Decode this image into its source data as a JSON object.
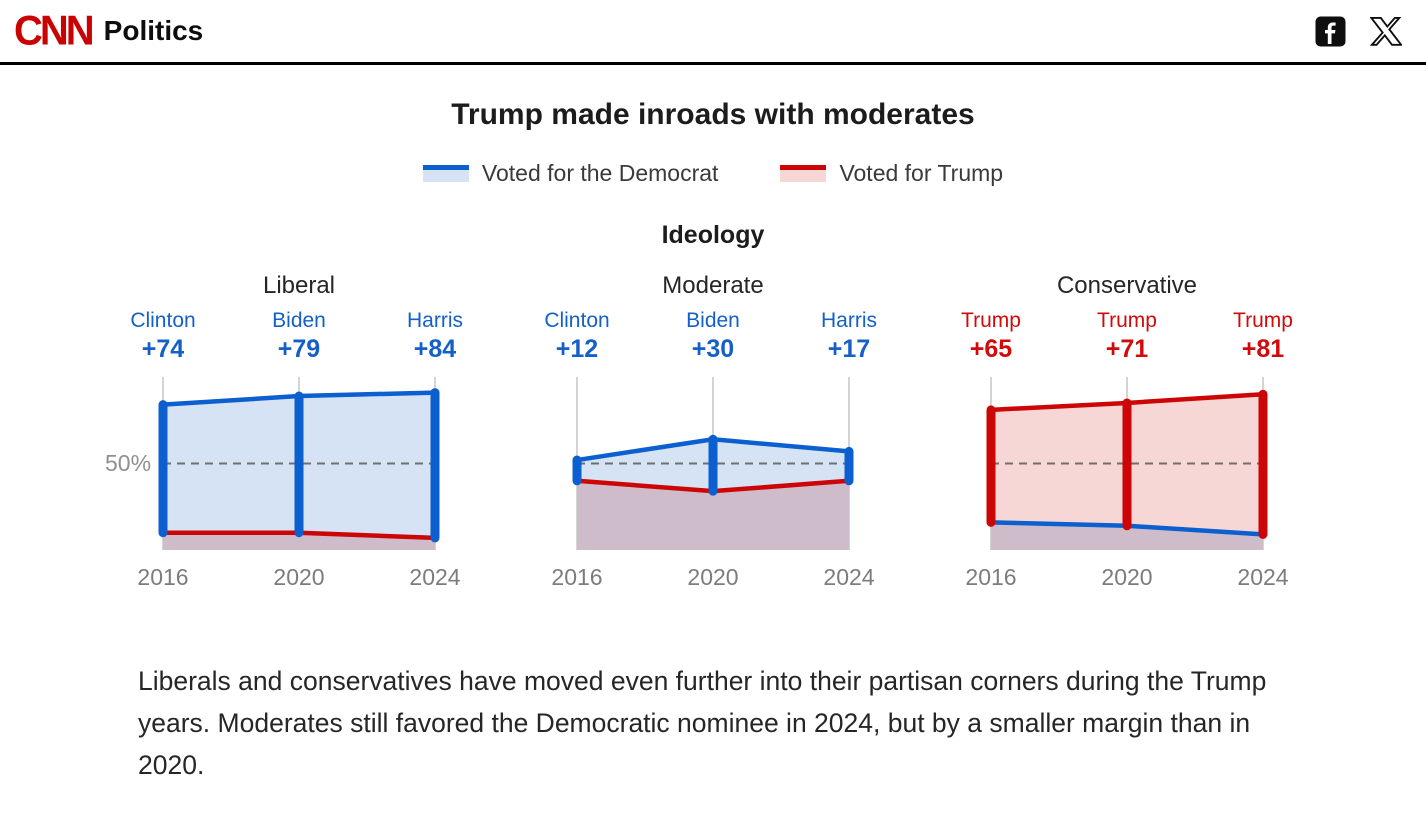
{
  "header": {
    "brand": "CNN",
    "section": "Politics",
    "social": {
      "facebook": "facebook-share",
      "x": "x-share"
    }
  },
  "chart": {
    "title": "Trump made inroads with moderates",
    "group_label": "Ideology",
    "y_ref_label": "50%",
    "legend": [
      {
        "label": "Voted for the Democrat",
        "line_color": "#0b5fce",
        "fill_color": "#d5e3f5"
      },
      {
        "label": "Voted for Trump",
        "line_color": "#cc0606",
        "fill_color": "#f6d7d6"
      }
    ]
  },
  "chart_data": {
    "type": "area",
    "x": [
      2016,
      2020,
      2024
    ],
    "x_tick_labels": [
      "2016",
      "2020",
      "2024"
    ],
    "ylim": [
      0,
      100
    ],
    "reference_line": 50,
    "panels": [
      {
        "title": "Liberal",
        "leader": "democrat",
        "annotations": [
          {
            "name": "Clinton",
            "margin": "+74"
          },
          {
            "name": "Biden",
            "margin": "+79"
          },
          {
            "name": "Harris",
            "margin": "+84"
          }
        ],
        "series": [
          {
            "name": "Democrat",
            "values": [
              84,
              89,
              91
            ]
          },
          {
            "name": "Trump",
            "values": [
              10,
              10,
              7
            ]
          }
        ]
      },
      {
        "title": "Moderate",
        "leader": "democrat",
        "annotations": [
          {
            "name": "Clinton",
            "margin": "+12"
          },
          {
            "name": "Biden",
            "margin": "+30"
          },
          {
            "name": "Harris",
            "margin": "+17"
          }
        ],
        "series": [
          {
            "name": "Democrat",
            "values": [
              52,
              64,
              57
            ]
          },
          {
            "name": "Trump",
            "values": [
              40,
              34,
              40
            ]
          }
        ]
      },
      {
        "title": "Conservative",
        "leader": "trump",
        "annotations": [
          {
            "name": "Trump",
            "margin": "+65"
          },
          {
            "name": "Trump",
            "margin": "+71"
          },
          {
            "name": "Trump",
            "margin": "+81"
          }
        ],
        "series": [
          {
            "name": "Democrat",
            "values": [
              16,
              14,
              9
            ]
          },
          {
            "name": "Trump",
            "values": [
              81,
              85,
              90
            ]
          }
        ]
      }
    ]
  },
  "colors": {
    "dem_line": "#0b5fce",
    "dem_fill": "#d5e3f5",
    "rep_line": "#cc0606",
    "rep_fill": "#f6d7d6",
    "overlap_fill": "#cebcca",
    "dem_text": "#1560c8",
    "rep_text": "#d10b0b",
    "gridline": "#c6c6c6",
    "reference": "#6f6f6f"
  },
  "caption": "Liberals and conservatives have moved even further into their partisan corners during the Trump years. Moderates still favored the Democratic nominee in 2024, but by a smaller margin than in 2020."
}
